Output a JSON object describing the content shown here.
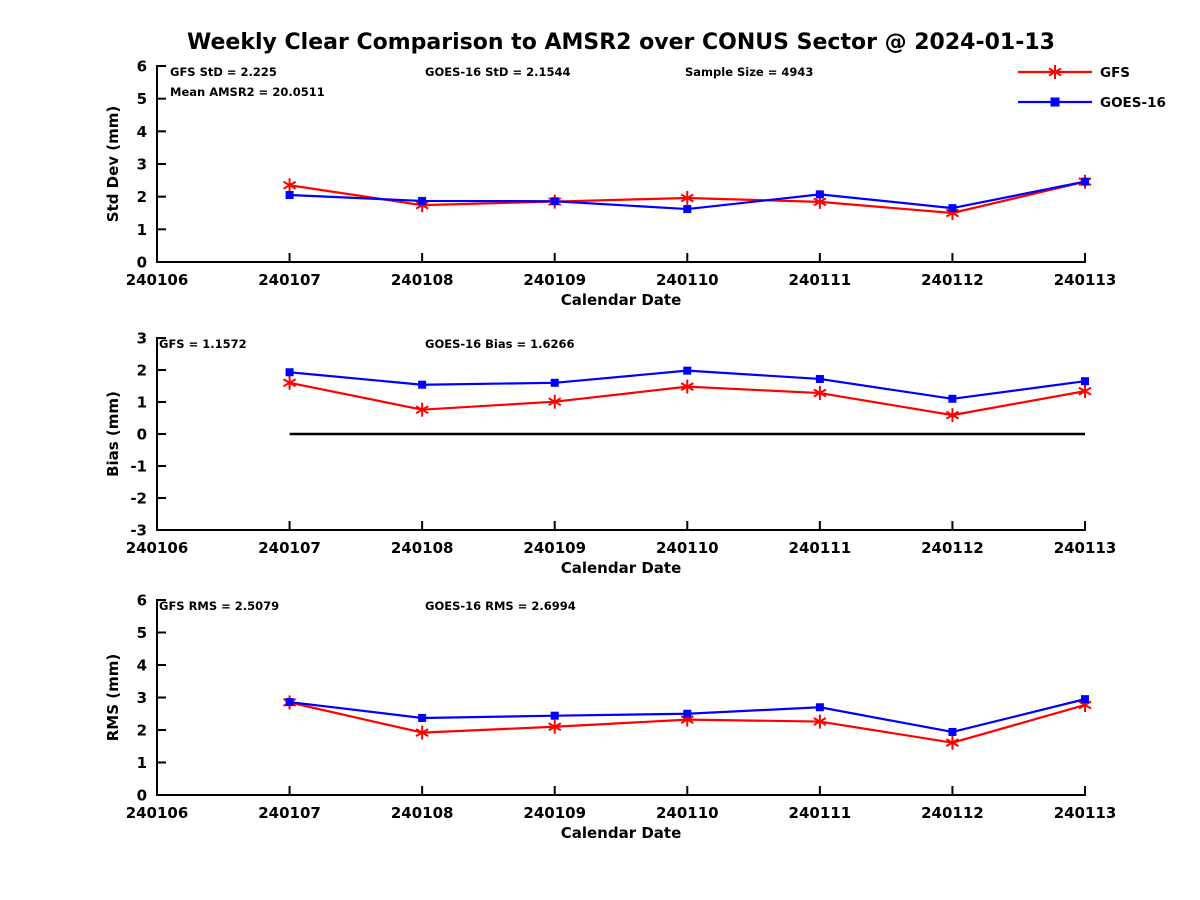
{
  "figure": {
    "title": "Weekly Clear Comparison to AMSR2 over CONUS Sector @ 2024-01-13"
  },
  "colors": {
    "gfs": "#ff0000",
    "goes16": "#0000ff",
    "axis": "#000000",
    "text": "#000000",
    "zero_line": "#000000",
    "background": "#ffffff"
  },
  "legend": {
    "position": "top-right",
    "entries": [
      {
        "label": "GFS",
        "color_key": "gfs",
        "marker": "asterisk"
      },
      {
        "label": "GOES-16",
        "color_key": "goes16",
        "marker": "square"
      }
    ]
  },
  "chart_data": [
    {
      "type": "line",
      "ylabel": "Std Dev (mm)",
      "xlabel": "Calendar Date",
      "ylim": [
        0,
        6
      ],
      "yticks": [
        0,
        1,
        2,
        3,
        4,
        5,
        6
      ],
      "categories": [
        "240106",
        "240107",
        "240108",
        "240109",
        "240110",
        "240111",
        "240112",
        "240113"
      ],
      "grid": false,
      "zero_line": false,
      "annotations": [
        {
          "text": "GFS StD = 2.225",
          "col": 0,
          "row": 0
        },
        {
          "text": "GOES-16 StD = 2.1544",
          "col": 1,
          "row": 0
        },
        {
          "text": "Sample Size = 4943",
          "col": 2,
          "row": 0
        },
        {
          "text": "Mean AMSR2 = 20.0511",
          "col": 0,
          "row": 1
        }
      ],
      "series": [
        {
          "name": "GFS",
          "color_key": "gfs",
          "marker": "asterisk",
          "x": [
            "240107",
            "240108",
            "240109",
            "240110",
            "240111",
            "240112",
            "240113"
          ],
          "values": [
            2.35,
            1.74,
            1.85,
            1.96,
            1.84,
            1.5,
            2.46
          ]
        },
        {
          "name": "GOES-16",
          "color_key": "goes16",
          "marker": "square",
          "x": [
            "240107",
            "240108",
            "240109",
            "240110",
            "240111",
            "240112",
            "240113"
          ],
          "values": [
            2.05,
            1.87,
            1.86,
            1.62,
            2.07,
            1.65,
            2.46
          ]
        }
      ]
    },
    {
      "type": "line",
      "ylabel": "Bias (mm)",
      "xlabel": "Calendar Date",
      "ylim": [
        -3,
        3
      ],
      "yticks": [
        -3,
        -2,
        -1,
        0,
        1,
        2,
        3
      ],
      "categories": [
        "240106",
        "240107",
        "240108",
        "240109",
        "240110",
        "240111",
        "240112",
        "240113"
      ],
      "grid": false,
      "zero_line": true,
      "annotations": [
        {
          "text": "GFS = 1.1572",
          "col": 0,
          "row": 0
        },
        {
          "text": "GOES-16 Bias  = 1.6266",
          "col": 1,
          "row": 0
        }
      ],
      "series": [
        {
          "name": "GFS",
          "color_key": "gfs",
          "marker": "asterisk",
          "x": [
            "240107",
            "240108",
            "240109",
            "240110",
            "240111",
            "240112",
            "240113"
          ],
          "values": [
            1.6,
            0.76,
            1.01,
            1.48,
            1.28,
            0.59,
            1.34
          ]
        },
        {
          "name": "GOES-16",
          "color_key": "goes16",
          "marker": "square",
          "x": [
            "240107",
            "240108",
            "240109",
            "240110",
            "240111",
            "240112",
            "240113"
          ],
          "values": [
            1.93,
            1.54,
            1.6,
            1.98,
            1.72,
            1.1,
            1.65
          ]
        }
      ]
    },
    {
      "type": "line",
      "ylabel": "RMS (mm)",
      "xlabel": "Calendar Date",
      "ylim": [
        0,
        6
      ],
      "yticks": [
        0,
        1,
        2,
        3,
        4,
        5,
        6
      ],
      "categories": [
        "240106",
        "240107",
        "240108",
        "240109",
        "240110",
        "240111",
        "240112",
        "240113"
      ],
      "grid": false,
      "zero_line": false,
      "annotations": [
        {
          "text": "GFS RMS = 2.5079",
          "col": 0,
          "row": 0
        },
        {
          "text": "GOES-16 RMS = 2.6994",
          "col": 1,
          "row": 0
        }
      ],
      "series": [
        {
          "name": "GFS",
          "color_key": "gfs",
          "marker": "asterisk",
          "x": [
            "240107",
            "240108",
            "240109",
            "240110",
            "240111",
            "240112",
            "240113"
          ],
          "values": [
            2.85,
            1.92,
            2.1,
            2.32,
            2.26,
            1.61,
            2.77
          ]
        },
        {
          "name": "GOES-16",
          "color_key": "goes16",
          "marker": "square",
          "x": [
            "240107",
            "240108",
            "240109",
            "240110",
            "240111",
            "240112",
            "240113"
          ],
          "values": [
            2.86,
            2.37,
            2.44,
            2.5,
            2.7,
            1.94,
            2.95
          ]
        }
      ]
    }
  ]
}
